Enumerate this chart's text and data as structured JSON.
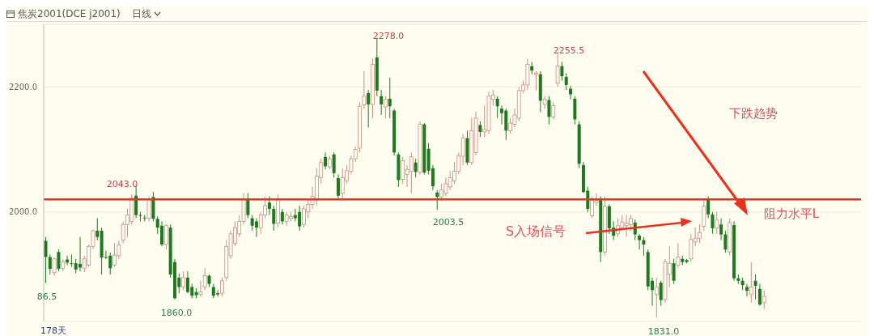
{
  "chart_data": {
    "type": "candlestick",
    "title": "焦炭2001(DCE j2001)",
    "subtitle": "日线",
    "categories": [
      null,
      null,
      null,
      null,
      null,
      null,
      null,
      null,
      null,
      null,
      null,
      null,
      null,
      null,
      null,
      null,
      null,
      null,
      null,
      null,
      null,
      null,
      null,
      null,
      null,
      null,
      null,
      null,
      null,
      null,
      null,
      null,
      null,
      null,
      null,
      null,
      null,
      null,
      null,
      null,
      null,
      null,
      null,
      null,
      null,
      null,
      null,
      null,
      null,
      null,
      null,
      null,
      null,
      null,
      null,
      null,
      null,
      null,
      null,
      null,
      null,
      null,
      null,
      null,
      null,
      null,
      null,
      null,
      null,
      null,
      null,
      null,
      null,
      null,
      null,
      null,
      null,
      null,
      null,
      null,
      null,
      null,
      null,
      null,
      null,
      null,
      null,
      null,
      null,
      null,
      null,
      null,
      null,
      null,
      null,
      null,
      null,
      null,
      null,
      null,
      null,
      null,
      null,
      null,
      null,
      null,
      null,
      null,
      null,
      null,
      null,
      null,
      null,
      null,
      null,
      null,
      null,
      null,
      null,
      null,
      null,
      null,
      null,
      null,
      null,
      null,
      null,
      null,
      null,
      null,
      null,
      null,
      null,
      null,
      null,
      null,
      null,
      null,
      null,
      null,
      null,
      null,
      null,
      null,
      null,
      null,
      null,
      null,
      null,
      null,
      null,
      null,
      null,
      null,
      null,
      null,
      null,
      null,
      null,
      null,
      null,
      null,
      null,
      null,
      null,
      null,
      null,
      null,
      null,
      null,
      null,
      null,
      null,
      null,
      null,
      null,
      null,
      null,
      null,
      null,
      null,
      null,
      null,
      null,
      null,
      null,
      null,
      null,
      null,
      null
    ],
    "ohlc": [
      [
        1954,
        1960,
        1886.5,
        1928
      ],
      [
        1928,
        1932,
        1900,
        1909
      ],
      [
        1903,
        1927,
        1898,
        1925
      ],
      [
        1936,
        1940,
        1905,
        1909
      ],
      [
        1910,
        1925,
        1905,
        1920
      ],
      [
        1924,
        1930,
        1915,
        1919
      ],
      [
        1918,
        1932,
        1912,
        1917
      ],
      [
        1918,
        1925,
        1902,
        1908
      ],
      [
        1917,
        1960,
        1905,
        1911
      ],
      [
        1910,
        1930,
        1904,
        1925
      ],
      [
        1915,
        1948,
        1912,
        1945
      ],
      [
        1945,
        1972,
        1940,
        1970
      ],
      [
        1970,
        1990,
        1955,
        1960
      ],
      [
        1970,
        1975,
        1900,
        1927
      ],
      [
        1928,
        1938,
        1925,
        1927
      ],
      [
        1930,
        1935,
        1900,
        1910
      ],
      [
        1915,
        1950,
        1912,
        1931
      ],
      [
        1930,
        1954,
        1925,
        1947
      ],
      [
        1955,
        1985,
        1950,
        1980
      ],
      [
        1980,
        2005,
        1960,
        1995
      ],
      [
        1985,
        2028,
        1980,
        2023
      ],
      [
        2026,
        2043,
        1990,
        1995
      ],
      [
        1995,
        2000,
        1985,
        1994
      ],
      [
        1991,
        1995,
        1985,
        1990
      ],
      [
        1990,
        2025,
        1985,
        2020
      ],
      [
        2024,
        2032,
        1985,
        1989
      ],
      [
        1989,
        1993,
        1965,
        1975
      ],
      [
        1978,
        1985,
        1945,
        1948
      ],
      [
        1948,
        1980,
        1940,
        1978
      ],
      [
        1975,
        1980,
        1895,
        1900
      ],
      [
        1920,
        1925,
        1860,
        1862
      ],
      [
        1895,
        1902,
        1870,
        1880
      ],
      [
        1880,
        1905,
        1875,
        1895
      ],
      [
        1895,
        1905,
        1870,
        1872
      ],
      [
        1880,
        1885,
        1862,
        1866
      ],
      [
        1872,
        1878,
        1862,
        1867
      ],
      [
        1868,
        1890,
        1865,
        1872
      ],
      [
        1880,
        1910,
        1875,
        1898
      ],
      [
        1898,
        1900,
        1880,
        1885
      ],
      [
        1880,
        1885,
        1862,
        1866
      ],
      [
        1870,
        1875,
        1865,
        1868
      ],
      [
        1870,
        1895,
        1865,
        1890
      ],
      [
        1895,
        1955,
        1890,
        1945
      ],
      [
        1930,
        1970,
        1925,
        1965
      ],
      [
        1950,
        1985,
        1945,
        1975
      ],
      [
        1965,
        1995,
        1960,
        1985
      ],
      [
        1985,
        2030,
        1980,
        2020
      ],
      [
        2020,
        2030,
        1990,
        1995
      ],
      [
        1990,
        1995,
        1970,
        1978
      ],
      [
        1985,
        1990,
        1960,
        1975
      ],
      [
        1975,
        2000,
        1965,
        1995
      ],
      [
        1995,
        2025,
        1990,
        2010
      ],
      [
        2015,
        2025,
        1995,
        2005
      ],
      [
        2005,
        2010,
        1970,
        1981
      ],
      [
        1982,
        2028,
        1975,
        2020
      ],
      [
        2000,
        2005,
        1980,
        1985
      ],
      [
        1985,
        2000,
        1978,
        1995
      ],
      [
        1990,
        2000,
        1985,
        1993
      ],
      [
        1995,
        2005,
        1985,
        1990
      ],
      [
        2000,
        2010,
        1970,
        1977
      ],
      [
        1980,
        2010,
        1975,
        2005
      ],
      [
        2000,
        2020,
        1990,
        2012
      ],
      [
        2012,
        2040,
        2005,
        2025
      ],
      [
        2019,
        2070,
        2010,
        2057
      ],
      [
        2055,
        2085,
        2045,
        2079
      ],
      [
        2088,
        2095,
        2068,
        2073
      ],
      [
        2072,
        2090,
        2068,
        2085
      ],
      [
        2092,
        2095,
        2055,
        2062
      ],
      [
        2054,
        2060,
        2022,
        2026
      ],
      [
        2030,
        2070,
        2022,
        2055
      ],
      [
        2050,
        2075,
        2045,
        2066
      ],
      [
        2065,
        2090,
        2060,
        2085
      ],
      [
        2085,
        2105,
        2080,
        2100
      ],
      [
        2102,
        2175,
        2095,
        2169
      ],
      [
        2171,
        2225,
        2165,
        2185
      ],
      [
        2190,
        2195,
        2135,
        2172
      ],
      [
        2172,
        2245,
        2150,
        2236
      ],
      [
        2247,
        2278,
        2185,
        2194
      ],
      [
        2185,
        2195,
        2155,
        2172
      ],
      [
        2168,
        2185,
        2150,
        2180
      ],
      [
        2181,
        2215,
        2150,
        2169
      ],
      [
        2162,
        2165,
        2090,
        2095
      ],
      [
        2092,
        2095,
        2040,
        2051
      ],
      [
        2052,
        2088,
        2045,
        2082
      ],
      [
        2060,
        2075,
        2040,
        2068
      ],
      [
        2065,
        2095,
        2030,
        2088
      ],
      [
        2079,
        2085,
        2055,
        2064
      ],
      [
        2064,
        2145,
        2060,
        2140
      ],
      [
        2140,
        2142,
        2060,
        2063
      ],
      [
        2101,
        2110,
        2060,
        2066
      ],
      [
        2070,
        2075,
        2035,
        2041
      ],
      [
        2031,
        2035,
        2003.5,
        2024
      ],
      [
        2024,
        2045,
        2018,
        2035
      ],
      [
        2030,
        2055,
        2025,
        2045
      ],
      [
        2040,
        2065,
        2035,
        2055
      ],
      [
        2050,
        2080,
        2045,
        2065
      ],
      [
        2065,
        2095,
        2060,
        2090
      ],
      [
        2089,
        2125,
        2075,
        2118
      ],
      [
        2118,
        2130,
        2075,
        2079
      ],
      [
        2079,
        2150,
        2075,
        2130
      ],
      [
        2095,
        2160,
        2090,
        2150
      ],
      [
        2139,
        2145,
        2120,
        2128
      ],
      [
        2128,
        2170,
        2120,
        2132
      ],
      [
        2130,
        2192,
        2125,
        2185
      ],
      [
        2180,
        2195,
        2170,
        2187
      ],
      [
        2181,
        2185,
        2150,
        2169
      ],
      [
        2165,
        2170,
        2140,
        2158
      ],
      [
        2162,
        2165,
        2115,
        2130
      ],
      [
        2130,
        2150,
        2125,
        2142
      ],
      [
        2140,
        2165,
        2135,
        2155
      ],
      [
        2150,
        2200,
        2145,
        2194
      ],
      [
        2194,
        2210,
        2190,
        2203
      ],
      [
        2203,
        2245,
        2195,
        2236
      ],
      [
        2233,
        2240,
        2220,
        2226
      ],
      [
        2220,
        2225,
        2195,
        2222
      ],
      [
        2220,
        2225,
        2160,
        2178
      ],
      [
        2172,
        2185,
        2165,
        2180
      ],
      [
        2179,
        2185,
        2140,
        2152
      ],
      [
        2152,
        2175,
        2148,
        2170
      ],
      [
        2206,
        2255.5,
        2200,
        2233
      ],
      [
        2233,
        2240,
        2210,
        2217
      ],
      [
        2216,
        2222,
        2195,
        2203
      ],
      [
        2197,
        2202,
        2180,
        2188
      ],
      [
        2181,
        2185,
        2140,
        2148
      ],
      [
        2140,
        2145,
        2070,
        2077
      ],
      [
        2075,
        2080,
        2030,
        2032
      ],
      [
        2034,
        2040,
        2000,
        2005
      ],
      [
        1994,
        2025,
        1990,
        2019
      ],
      [
        2015,
        2030,
        2010,
        2018
      ],
      [
        2019,
        2025,
        1920,
        1936
      ],
      [
        1936,
        2025,
        1930,
        2009
      ],
      [
        2009,
        2012,
        1965,
        1974
      ],
      [
        1975,
        1985,
        1955,
        1962
      ],
      [
        1965,
        1990,
        1960,
        1978
      ],
      [
        1975,
        1995,
        1970,
        1984
      ],
      [
        1978,
        1995,
        1960,
        1982
      ],
      [
        1980,
        1995,
        1970,
        1990
      ],
      [
        1983,
        1988,
        1955,
        1964
      ],
      [
        1962,
        1965,
        1940,
        1955
      ],
      [
        1955,
        1960,
        1930,
        1948
      ],
      [
        1936,
        1940,
        1875,
        1881
      ],
      [
        1890,
        1895,
        1850,
        1875
      ],
      [
        1868,
        1895,
        1831,
        1880
      ],
      [
        1887,
        1890,
        1850,
        1859
      ],
      [
        1860,
        1925,
        1855,
        1920
      ],
      [
        1900,
        1945,
        1880,
        1918
      ],
      [
        1918,
        1925,
        1885,
        1890
      ],
      [
        1915,
        1950,
        1910,
        1928
      ],
      [
        1925,
        1930,
        1915,
        1920
      ],
      [
        1923,
        1925,
        1918,
        1920
      ],
      [
        1925,
        1965,
        1920,
        1956
      ],
      [
        1952,
        1975,
        1945,
        1958
      ],
      [
        1958,
        1980,
        1950,
        1967
      ],
      [
        1977,
        2020,
        1970,
        2009
      ],
      [
        2020,
        2025,
        1990,
        1996
      ],
      [
        1996,
        2000,
        1965,
        1974
      ],
      [
        1974,
        2000,
        1965,
        1987
      ],
      [
        1980,
        1990,
        1955,
        1964
      ],
      [
        1964,
        1970,
        1935,
        1940
      ],
      [
        1936,
        1990,
        1930,
        1983
      ],
      [
        1979,
        1985,
        1890,
        1894
      ],
      [
        1894,
        1900,
        1885,
        1890
      ],
      [
        1890,
        1895,
        1875,
        1883
      ],
      [
        1880,
        1885,
        1865,
        1874
      ],
      [
        1868,
        1920,
        1855,
        1880
      ],
      [
        1890,
        1900,
        1860,
        1882
      ],
      [
        1877,
        1885,
        1850,
        1852
      ],
      [
        1855,
        1875,
        1845,
        1865
      ],
      null,
      null,
      null,
      null,
      null,
      null,
      null,
      null,
      null,
      null,
      null,
      null,
      null,
      null,
      null,
      null,
      null,
      null,
      null,
      null,
      null,
      null
    ],
    "ylim": [
      1825,
      2300
    ],
    "yticks": [
      {
        "value": 2000,
        "label": "2000.0"
      },
      {
        "value": 2200,
        "label": "2200.0"
      }
    ],
    "grid": "y",
    "ref_lines": [
      {
        "axis": "y",
        "value": 2020,
        "label": "阻力水平L",
        "color": "#e8321e"
      }
    ],
    "annotations": [
      "86.5",
      "2043.0",
      "1860.0",
      "2278.0",
      "2003.5",
      "2255.5",
      "1831.0",
      "S入场信号",
      "下跌趋势",
      "178天"
    ]
  }
}
